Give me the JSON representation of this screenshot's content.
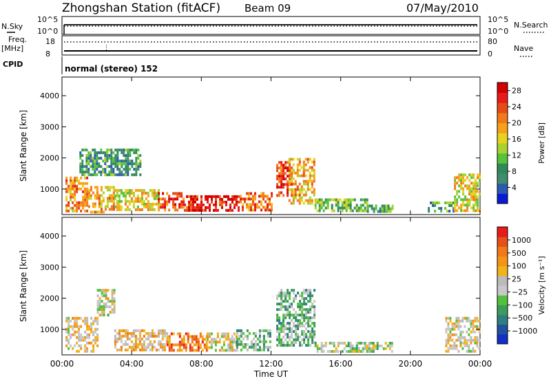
{
  "header": {
    "station": "Zhongshan Station (fitACF)",
    "beam": "Beam 09",
    "date": "07/May/2010"
  },
  "strip": {
    "nsky_label": "N.Sky",
    "nsky_ticks": [
      "10^5",
      "10^0"
    ],
    "nsearch_label": "N.Search",
    "nsearch_ticks": [
      "10^5",
      "10^0"
    ],
    "freq_label": "Freq.",
    "freq_unit": "[MHz]",
    "freq_ticks": [
      "18",
      "8"
    ],
    "nave_label": "Nave",
    "nave_ticks": [
      "80",
      "0"
    ],
    "cpid_label": "CPID",
    "cpid_text": "normal (stereo) 152"
  },
  "x_axis": {
    "title": "Time UT",
    "ticks": [
      "00:00",
      "04:00",
      "08:00",
      "12:00",
      "16:00",
      "20:00",
      "00:00"
    ]
  },
  "chart_data": [
    {
      "type": "heatmap",
      "panel": "power",
      "ylabel": "Slant Range [km]",
      "yticks": [
        "1000",
        "2000",
        "3000",
        "4000"
      ],
      "ylim": [
        180,
        4600
      ],
      "xlim_hours": [
        0,
        24
      ],
      "colorbar": {
        "label": "Power [dB]",
        "ticks": [
          "4",
          "8",
          "12",
          "16",
          "20",
          "24",
          "28"
        ],
        "range": [
          0,
          30
        ],
        "colors": [
          "#0a1bd6",
          "#2b5bb0",
          "#3f8c6f",
          "#2e8b57",
          "#57c23a",
          "#a8d230",
          "#e8d21e",
          "#f7a11a",
          "#f07a18",
          "#e84a16",
          "#e81b1b",
          "#d40000"
        ]
      },
      "regions": [
        {
          "t": [
            0.2,
            1.5
          ],
          "r": [
            300,
            1400
          ],
          "v": 20
        },
        {
          "t": [
            1.5,
            3.0
          ],
          "r": [
            300,
            1100
          ],
          "v": 18
        },
        {
          "t": [
            3.0,
            5.5
          ],
          "r": [
            300,
            1000
          ],
          "v": 16
        },
        {
          "t": [
            5.5,
            7.0
          ],
          "r": [
            300,
            900
          ],
          "v": 24
        },
        {
          "t": [
            7.0,
            10.2
          ],
          "r": [
            300,
            800
          ],
          "v": 27
        },
        {
          "t": [
            10.2,
            12.0
          ],
          "r": [
            300,
            900
          ],
          "v": 22
        },
        {
          "t": [
            12.3,
            13.2
          ],
          "r": [
            800,
            1900
          ],
          "v": 25
        },
        {
          "t": [
            13.0,
            14.5
          ],
          "r": [
            500,
            2000
          ],
          "v": 18
        },
        {
          "t": [
            14.5,
            17.5
          ],
          "r": [
            300,
            700
          ],
          "v": 12
        },
        {
          "t": [
            17.5,
            19.0
          ],
          "r": [
            300,
            500
          ],
          "v": 10
        },
        {
          "t": [
            21.0,
            22.5
          ],
          "r": [
            300,
            600
          ],
          "v": 8
        },
        {
          "t": [
            22.5,
            24.0
          ],
          "r": [
            300,
            1500
          ],
          "v": 16
        },
        {
          "t": [
            1.0,
            4.5
          ],
          "r": [
            1500,
            2300
          ],
          "v": 8
        }
      ]
    },
    {
      "type": "heatmap",
      "panel": "velocity",
      "ylabel": "Slant Range [km]",
      "yticks": [
        "1000",
        "2000",
        "3000",
        "4000"
      ],
      "ylim": [
        180,
        4600
      ],
      "xlim_hours": [
        0,
        24
      ],
      "colorbar": {
        "label": "Velocity [m s⁻¹]",
        "ticks": [
          "1000",
          "500",
          "100",
          "25",
          "−25",
          "−100",
          "−500",
          "−1000"
        ],
        "range": [
          -1250,
          1250
        ],
        "colors": [
          "#1030c8",
          "#2050a0",
          "#2f7f7f",
          "#3c9c5a",
          "#52c03c",
          "#c8c8c8",
          "#bbbbbb",
          "#f2b219",
          "#f59518",
          "#f07a18",
          "#e8501a",
          "#e81b1b"
        ]
      },
      "regions": [
        {
          "t": [
            0.2,
            2.0
          ],
          "r": [
            300,
            1400
          ],
          "v": 200
        },
        {
          "t": [
            2.0,
            3.0
          ],
          "r": [
            1500,
            2300
          ],
          "v": 25
        },
        {
          "t": [
            3.0,
            6.0
          ],
          "r": [
            300,
            1000
          ],
          "v": 300
        },
        {
          "t": [
            6.0,
            8.3
          ],
          "r": [
            300,
            900
          ],
          "v": 700
        },
        {
          "t": [
            8.3,
            10.0
          ],
          "r": [
            300,
            900
          ],
          "v": 100
        },
        {
          "t": [
            10.0,
            12.0
          ],
          "r": [
            300,
            1000
          ],
          "v": -300
        },
        {
          "t": [
            12.3,
            14.5
          ],
          "r": [
            500,
            2300
          ],
          "v": -350
        },
        {
          "t": [
            14.5,
            19.0
          ],
          "r": [
            300,
            600
          ],
          "v": -100
        },
        {
          "t": [
            22.0,
            24.0
          ],
          "r": [
            300,
            1400
          ],
          "v": 150
        }
      ]
    }
  ]
}
